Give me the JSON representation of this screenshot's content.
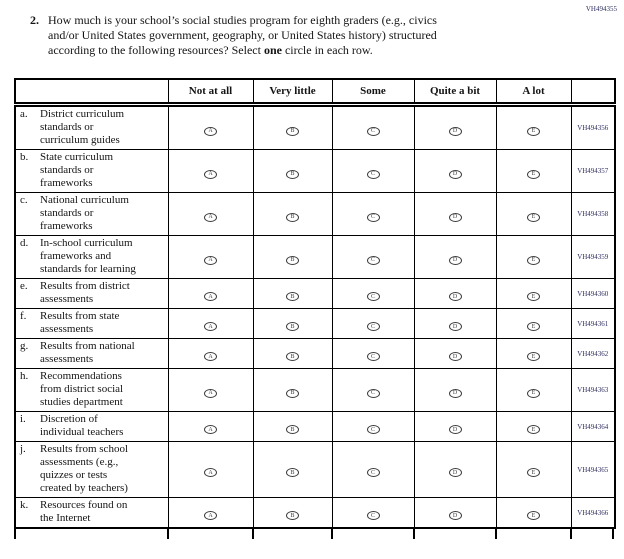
{
  "page": {
    "top_code": "VH494355",
    "question": {
      "number": "2.",
      "text_before_bold": "How much is your school’s social studies program for eighth graders (e.g., civics\nand/or United States government, geography, or United States history) structured\naccording to the following resources? Select ",
      "bold_word": "one",
      "text_after_bold": " circle in each row."
    }
  },
  "table": {
    "column_headers": [
      "Not at all",
      "Very little",
      "Some",
      "Quite a bit",
      "A lot"
    ],
    "bubble_letters": [
      "A",
      "B",
      "C",
      "D",
      "E"
    ],
    "rows": [
      {
        "letter": "a.",
        "label": "District curriculum\nstandards or\ncurriculum guides",
        "code": "VH494356"
      },
      {
        "letter": "b.",
        "label": "State curriculum\nstandards or\nframeworks",
        "code": "VH494357"
      },
      {
        "letter": "c.",
        "label": "National curriculum\nstandards or\nframeworks",
        "code": "VH494358"
      },
      {
        "letter": "d.",
        "label": "In-school curriculum\nframeworks and\nstandards for learning",
        "code": "VH494359"
      },
      {
        "letter": "e.",
        "label": "Results from district\nassessments",
        "code": "VH494360"
      },
      {
        "letter": "f.",
        "label": "Results from state\nassessments",
        "code": "VH494361"
      },
      {
        "letter": "g.",
        "label": "Results from national\nassessments",
        "code": "VH494362"
      },
      {
        "letter": "h.",
        "label": "Recommendations\nfrom district social\nstudies department",
        "code": "VH494363"
      },
      {
        "letter": "i.",
        "label": "Discretion of\nindividual teachers",
        "code": "VH494364"
      },
      {
        "letter": "j.",
        "label": "Results from school\nassessments (e.g.,\nquizzes or tests\ncreated by teachers)",
        "code": "VH494365"
      },
      {
        "letter": "k.",
        "label": "Resources found on\nthe Internet",
        "code": "VH494366"
      }
    ]
  },
  "colors": {
    "code_text": "#2d2d5e",
    "border": "#000000"
  }
}
